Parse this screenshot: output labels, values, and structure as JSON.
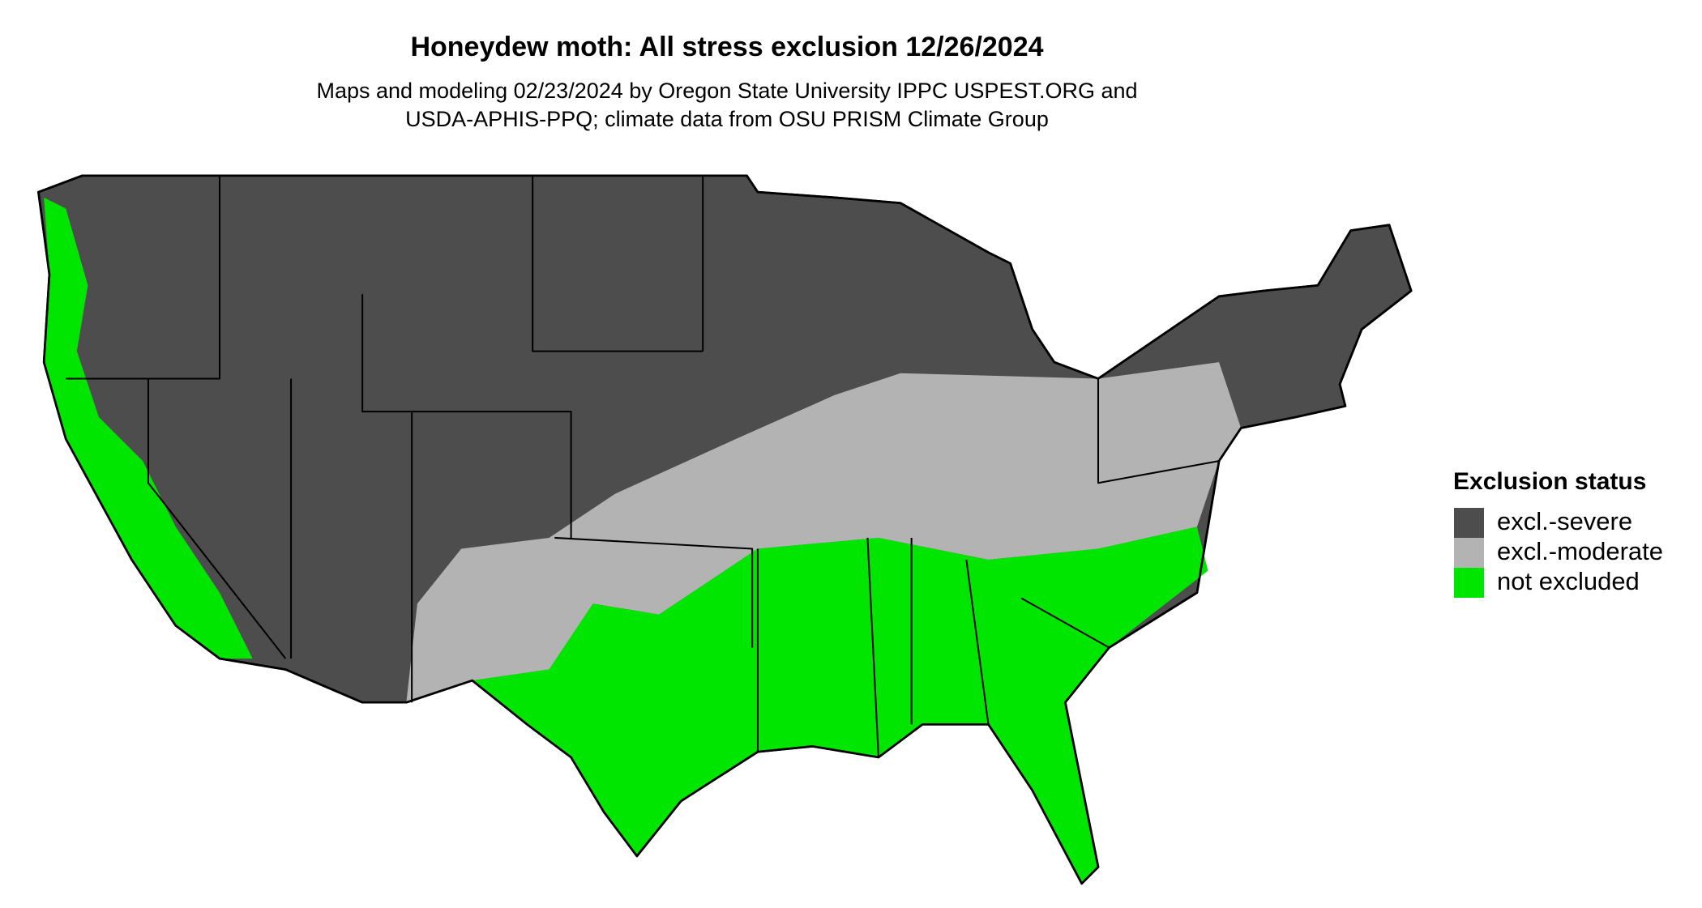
{
  "header": {
    "title": "Honeydew moth: All stress exclusion 12/26/2024",
    "subtitle": [
      "Maps and modeling 02/23/2024 by Oregon State University IPPC USPEST.ORG and",
      "USDA-APHIS-PPQ; climate data from OSU PRISM Climate Group"
    ]
  },
  "legend": {
    "title": "Exclusion status",
    "items": [
      {
        "label": "excl.-severe",
        "color": "#4d4d4d"
      },
      {
        "label": "excl.-moderate",
        "color": "#b3b3b3"
      },
      {
        "label": "not excluded",
        "color": "#00e600"
      }
    ]
  }
}
